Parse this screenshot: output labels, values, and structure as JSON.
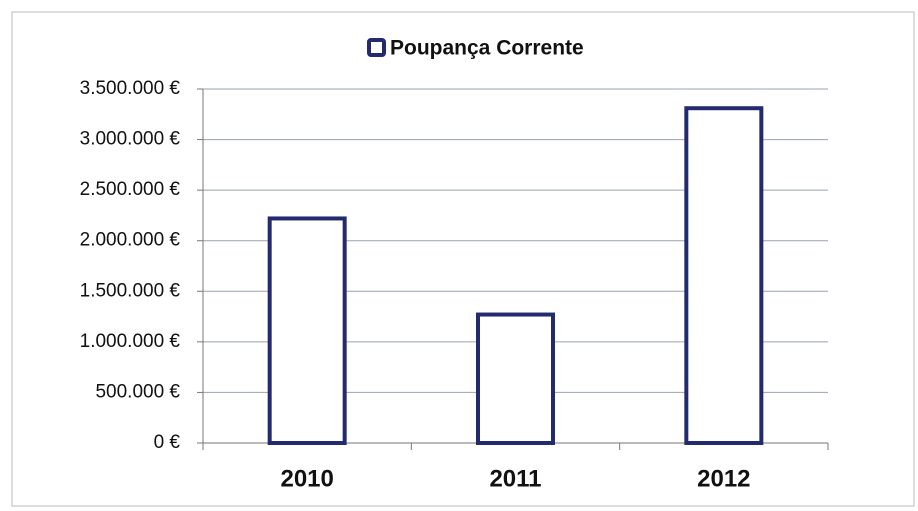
{
  "chart_data": {
    "type": "bar",
    "categories": [
      "2010",
      "2011",
      "2012"
    ],
    "series": [
      {
        "name": "Poupança Corrente",
        "color": "#ffffff",
        "edge_color": "#232a6e",
        "values": [
          2220000,
          1270000,
          3310000
        ]
      }
    ],
    "ylim": [
      0,
      3500000
    ],
    "yticks": [
      {
        "value": 0,
        "label": "0 €"
      },
      {
        "value": 500000,
        "label": "500.000 €"
      },
      {
        "value": 1000000,
        "label": "1.000.000 €"
      },
      {
        "value": 1500000,
        "label": "1.500.000 €"
      },
      {
        "value": 2000000,
        "label": "2.000.000 €"
      },
      {
        "value": 2500000,
        "label": "2.500.000 €"
      },
      {
        "value": 3000000,
        "label": "3.000.000 €"
      },
      {
        "value": 3500000,
        "label": "3.500.000 €"
      }
    ],
    "grid": true,
    "legend": "top"
  }
}
